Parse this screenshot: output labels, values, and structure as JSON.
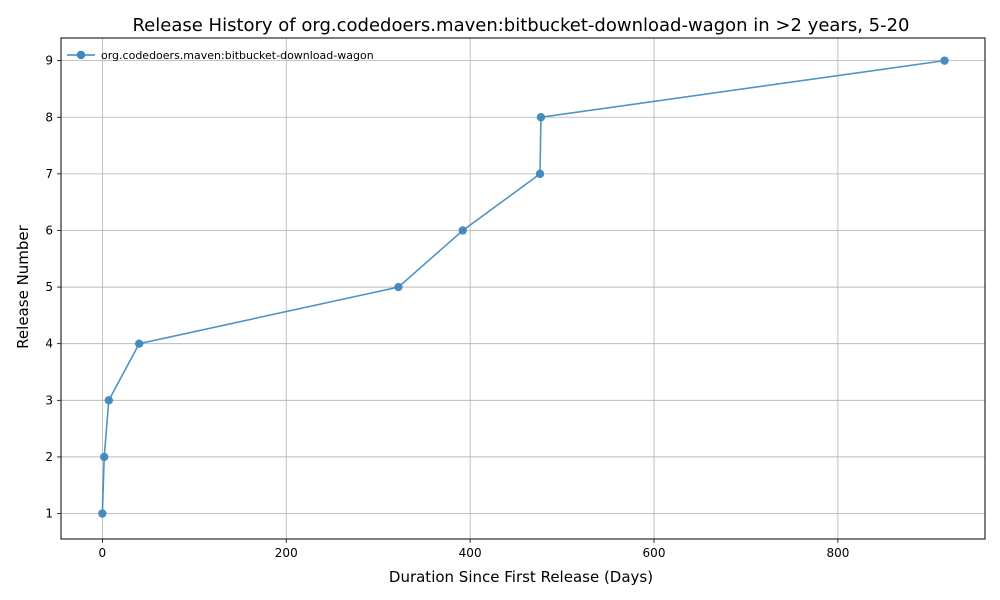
{
  "chart_data": {
    "type": "line",
    "title": "Release History of org.codedoers.maven:bitbucket-download-wagon in >2 years, 5-20",
    "xlabel": "Duration Since First Release (Days)",
    "ylabel": "Release Number",
    "xlim": [
      -45,
      960
    ],
    "ylim": [
      0.55,
      9.4
    ],
    "xticks": [
      0,
      200,
      400,
      600,
      800
    ],
    "yticks": [
      1,
      2,
      3,
      4,
      5,
      6,
      7,
      8,
      9
    ],
    "grid": true,
    "legend_position": "top-left",
    "series": [
      {
        "name": "org.codedoers.maven:bitbucket-download-wagon",
        "color": "#3d88be",
        "x": [
          0,
          2,
          7,
          40,
          322,
          392,
          476,
          477,
          916
        ],
        "y": [
          1,
          2,
          3,
          4,
          5,
          6,
          7,
          8,
          9
        ]
      }
    ]
  }
}
